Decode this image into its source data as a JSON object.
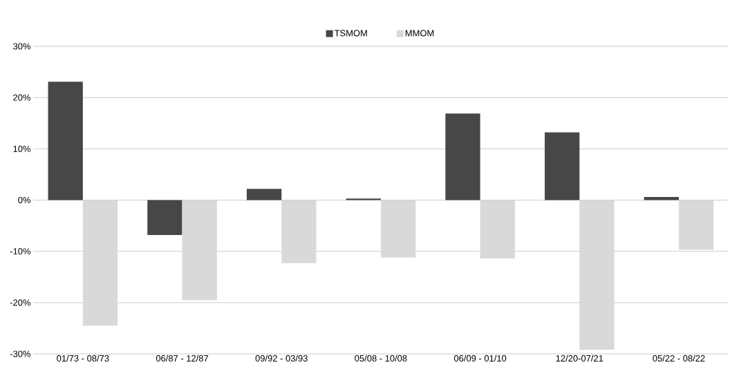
{
  "chart_data": {
    "type": "bar",
    "categories": [
      "01/73 - 08/73",
      "06/87 - 12/87",
      "09/92 - 03/93",
      "05/08 - 10/08",
      "06/09 - 01/10",
      "12/20-07/21",
      "05/22 - 08/22"
    ],
    "series": [
      {
        "name": "TSMOM",
        "color": "#474747",
        "values": [
          23.1,
          -6.8,
          2.2,
          0.3,
          16.9,
          13.2,
          0.6
        ]
      },
      {
        "name": "MMOM",
        "color": "#d9d9d9",
        "values": [
          -24.5,
          -19.5,
          -12.3,
          -11.2,
          -11.4,
          -29.2,
          -9.7
        ]
      }
    ],
    "ylim": [
      -30,
      30
    ],
    "yticks": [
      {
        "value": -30,
        "label": "-30%"
      },
      {
        "value": -20,
        "label": "-20%"
      },
      {
        "value": -10,
        "label": "-10%"
      },
      {
        "value": 0,
        "label": "0%"
      },
      {
        "value": 10,
        "label": "10%"
      },
      {
        "value": 20,
        "label": "20%"
      },
      {
        "value": 30,
        "label": "30%"
      }
    ],
    "grid": "y",
    "legend": "top"
  }
}
